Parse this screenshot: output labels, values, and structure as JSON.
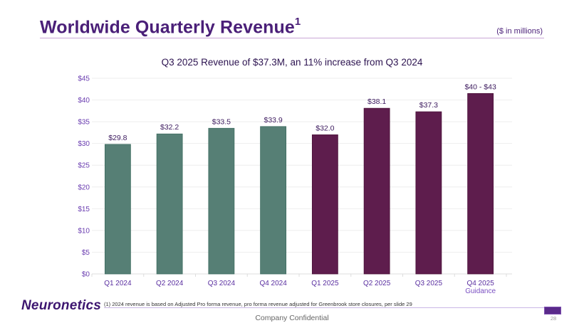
{
  "header": {
    "title": "Worldwide Quarterly Revenue",
    "title_superscript": "1",
    "units_note": "($ in millions)"
  },
  "chart_data": {
    "type": "bar",
    "title": "Q3 2025 Revenue of $37.3M, an 11% increase from Q3 2024",
    "xlabel": "",
    "ylabel": "",
    "ylim": [
      0,
      45
    ],
    "yticks": [
      0,
      5,
      10,
      15,
      20,
      25,
      30,
      35,
      40,
      45
    ],
    "ytick_labels": [
      "$0",
      "$5",
      "$10",
      "$15",
      "$20",
      "$25",
      "$30",
      "$35",
      "$40",
      "$45"
    ],
    "grid": true,
    "categories": [
      "Q1 2024",
      "Q2 2024",
      "Q3 2024",
      "Q4 2024",
      "Q1 2025",
      "Q2 2025",
      "Q3 2025",
      "Q4 2025"
    ],
    "category_sublabels": [
      "",
      "",
      "",
      "",
      "",
      "",
      "",
      "Guidance"
    ],
    "values": [
      29.8,
      32.2,
      33.5,
      33.9,
      32.0,
      38.1,
      37.3,
      41.5
    ],
    "data_labels": [
      "$29.8",
      "$32.2",
      "$33.5",
      "$33.9",
      "$32.0",
      "$38.1",
      "$37.3",
      "$40 - $43"
    ],
    "guidance_range": [
      40,
      43
    ],
    "bar_colors": [
      "#567f75",
      "#567f75",
      "#567f75",
      "#567f75",
      "#5e1d4d",
      "#5e1d4d",
      "#5e1d4d",
      "#5e1d4d"
    ],
    "series_colors": {
      "2024": "#567f75",
      "2025": "#5e1d4d"
    }
  },
  "footer": {
    "logo": "Neuronetics",
    "footnote": "(1) 2024 revenue is based on Adjusted Pro forma revenue, pro forma revenue adjusted for Greenbrook store closures, per slide 29",
    "confidential": "Company Confidential",
    "page_number": "28"
  },
  "colors": {
    "brand_purple": "#4a1f78",
    "bar_2024": "#567f75",
    "bar_2025": "#5e1d4d"
  }
}
